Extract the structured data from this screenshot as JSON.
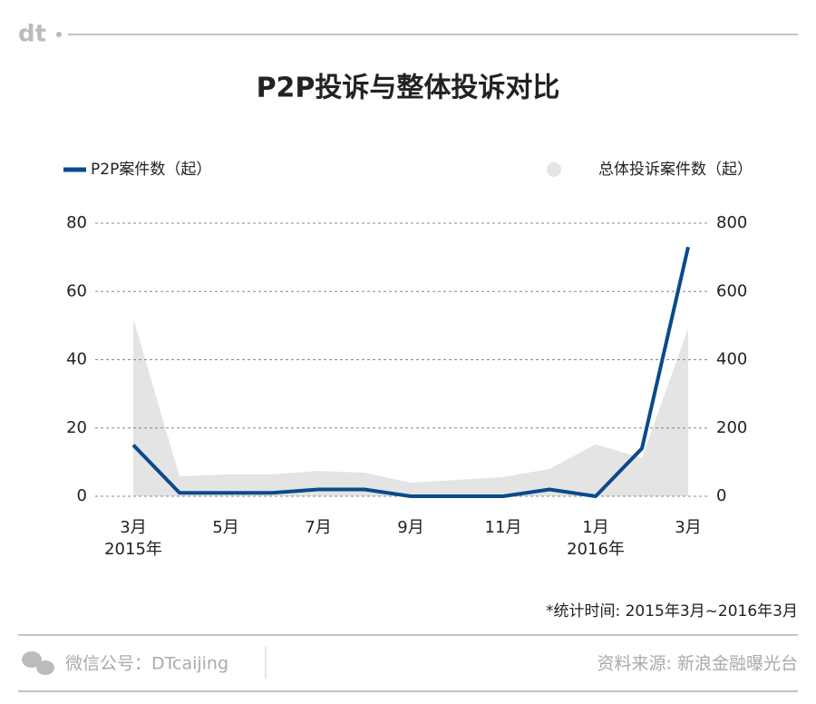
{
  "header": {
    "logo": "dt"
  },
  "chart_data": {
    "type": "line",
    "title": "P2P投诉与整体投诉对比",
    "categories": [
      "3月",
      null,
      "5月",
      null,
      "7月",
      null,
      "9月",
      null,
      "11月",
      null,
      "1月",
      null,
      "3月"
    ],
    "category_sublabels": [
      "2015年",
      null,
      null,
      null,
      null,
      null,
      null,
      null,
      null,
      null,
      "2016年",
      null,
      null
    ],
    "series": [
      {
        "name": "P2P案件数（起）",
        "color": "#0a4a8c",
        "values": [
          15,
          1,
          1,
          1,
          2,
          2,
          0,
          0,
          0,
          2,
          0,
          14,
          73
        ]
      },
      {
        "name": "总体投诉案件数（起）",
        "color": "#e4e4e4",
        "axis": "y2",
        "kind": "area",
        "values": [
          520,
          58,
          64,
          64,
          74,
          69,
          40,
          48,
          56,
          80,
          152,
          112,
          492
        ]
      }
    ],
    "ylim": [
      0,
      80
    ],
    "yticks": [
      0,
      20,
      40,
      60,
      80
    ],
    "y2lim": [
      0,
      800
    ],
    "y2ticks": [
      0,
      200,
      400,
      600,
      800
    ],
    "grid": true,
    "note": "*统计时间: 2015年3月~2016年3月"
  },
  "footer": {
    "account": "微信公号：DTcaijing",
    "source": "资料来源: 新浪金融曝光台"
  }
}
